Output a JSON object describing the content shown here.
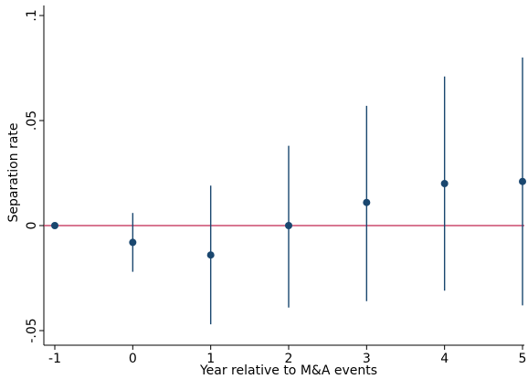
{
  "chart_data": {
    "type": "scatter",
    "xlabel": "Year relative to M&A events",
    "ylabel": "Separation rate",
    "xlim": [
      -1,
      5
    ],
    "ylim": [
      -0.05,
      0.1
    ],
    "x_ticks": [
      {
        "value": -1,
        "label": "-1"
      },
      {
        "value": 0,
        "label": "0"
      },
      {
        "value": 1,
        "label": "1"
      },
      {
        "value": 2,
        "label": "2"
      },
      {
        "value": 3,
        "label": "3"
      },
      {
        "value": 4,
        "label": "4"
      },
      {
        "value": 5,
        "label": "5"
      }
    ],
    "y_ticks": [
      {
        "value": -0.05,
        "label": "-.05"
      },
      {
        "value": 0,
        "label": "0"
      },
      {
        "value": 0.05,
        "label": ".05"
      },
      {
        "value": 0.1,
        "label": ".1"
      }
    ],
    "grid": false,
    "legend": "none",
    "reference_line": {
      "y": 0,
      "color": "#c0264f"
    },
    "series": [
      {
        "color": "#1a476f",
        "points": [
          {
            "x": -1,
            "y": 0.0,
            "ci_low": 0.0,
            "ci_high": 0.0
          },
          {
            "x": 0,
            "y": -0.008,
            "ci_low": -0.022,
            "ci_high": 0.006
          },
          {
            "x": 1,
            "y": -0.014,
            "ci_low": -0.047,
            "ci_high": 0.019
          },
          {
            "x": 2,
            "y": 0.0,
            "ci_low": -0.039,
            "ci_high": 0.038
          },
          {
            "x": 3,
            "y": 0.011,
            "ci_low": -0.036,
            "ci_high": 0.057
          },
          {
            "x": 4,
            "y": 0.02,
            "ci_low": -0.031,
            "ci_high": 0.071
          },
          {
            "x": 5,
            "y": 0.021,
            "ci_low": -0.038,
            "ci_high": 0.08
          }
        ]
      }
    ]
  }
}
